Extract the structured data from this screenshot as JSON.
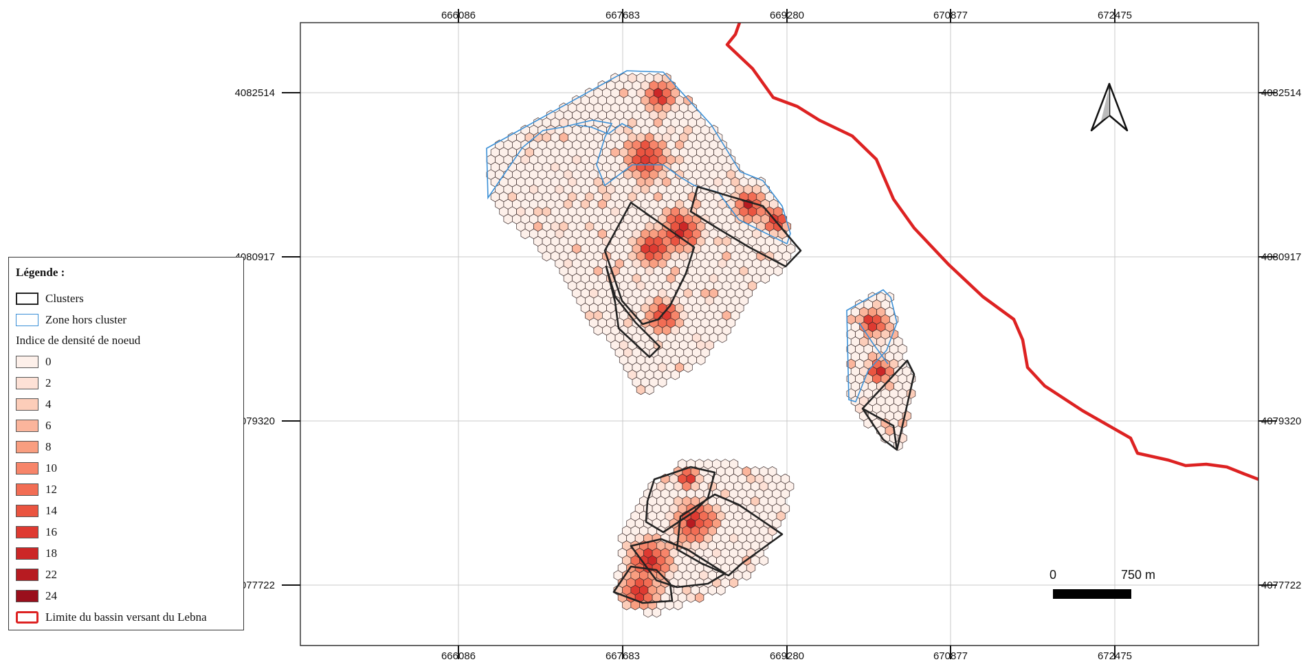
{
  "map": {
    "x_ticks": [
      "666086",
      "667683",
      "669280",
      "670877",
      "672475"
    ],
    "y_ticks": [
      "4082514",
      "4080917",
      "4079320",
      "4077722"
    ],
    "scale_bar": {
      "start_label": "0",
      "end_label": "750 m"
    },
    "north_arrow": "north-arrow-icon"
  },
  "legend": {
    "title": "Légende :",
    "clusters_label": "Clusters",
    "zone_label": "Zone hors cluster",
    "density_title": "Indice de densité de noeud",
    "density_classes": [
      {
        "label": "0",
        "color": "#fdf0ea"
      },
      {
        "label": "2",
        "color": "#fde1d6"
      },
      {
        "label": "4",
        "color": "#fccdb9"
      },
      {
        "label": "6",
        "color": "#fbb59c"
      },
      {
        "label": "8",
        "color": "#f99e80"
      },
      {
        "label": "10",
        "color": "#f7856a"
      },
      {
        "label": "12",
        "color": "#f26d54"
      },
      {
        "label": "14",
        "color": "#ea5440"
      },
      {
        "label": "16",
        "color": "#de3a31"
      },
      {
        "label": "18",
        "color": "#cc2727"
      },
      {
        "label": "22",
        "color": "#b71b21"
      },
      {
        "label": "24",
        "color": "#9a0f1c"
      }
    ],
    "basin_label": "Limite du bassin versant du Lebna"
  },
  "colors": {
    "basin": "#dd2222",
    "cluster": "#222222",
    "zone": "#3a8fd6",
    "grid": "#c8c8c8"
  }
}
